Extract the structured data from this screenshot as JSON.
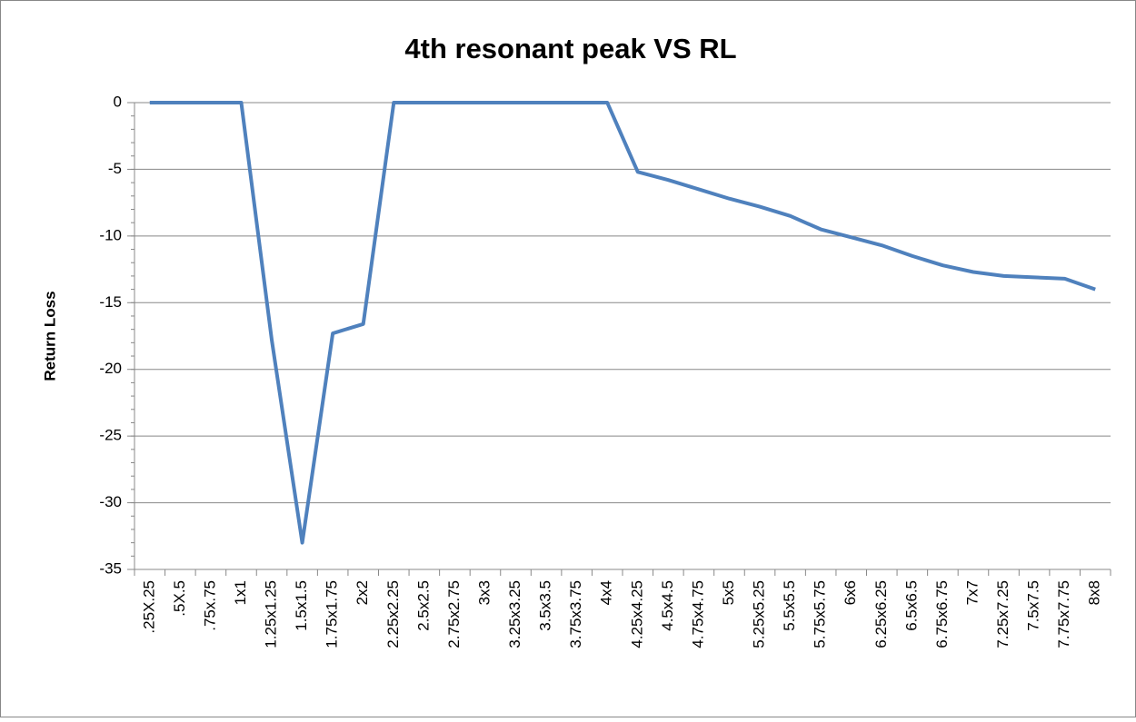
{
  "chart_data": {
    "type": "line",
    "title": "4th resonant peak VS RL",
    "y_label": "Return Loss",
    "categories": [
      ".25X.25",
      ".5X.5",
      ".75x.75",
      "1x1",
      "1.25x1.25",
      "1.5x1.5",
      "1.75x1.75",
      "2x2",
      "2.25x2.25",
      "2.5x2.5",
      "2.75x2.75",
      "3x3",
      "3.25x3.25",
      "3.5x3.5",
      "3.75x3.75",
      "4x4",
      "4.25x4.25",
      "4.5x4.5",
      "4.75x4.75",
      "5x5",
      "5.25x5.25",
      "5.5x5.5",
      "5.75x5.75",
      "6x6",
      "6.25x6.25",
      "6.5x6.5",
      "6.75x6.75",
      "7x7",
      "7.25x7.25",
      "7.5x7.5",
      "7.75x7.75",
      "8x8"
    ],
    "values": [
      0,
      0,
      0,
      0,
      -17.8,
      -33,
      -17.3,
      -16.6,
      0,
      0,
      0,
      0,
      0,
      0,
      0,
      0,
      -5.2,
      -5.8,
      -6.5,
      -7.2,
      -7.8,
      -8.5,
      -9.5,
      -10.1,
      -10.7,
      -11.5,
      -12.2,
      -12.7,
      -13.0,
      -13.1,
      -13.2,
      -14.0
    ],
    "color": "#4f81bd",
    "ylim": [
      -35,
      0
    ],
    "yticks": [
      -35,
      -30,
      -25,
      -20,
      -15,
      -10,
      -5,
      0
    ],
    "grid": true
  }
}
